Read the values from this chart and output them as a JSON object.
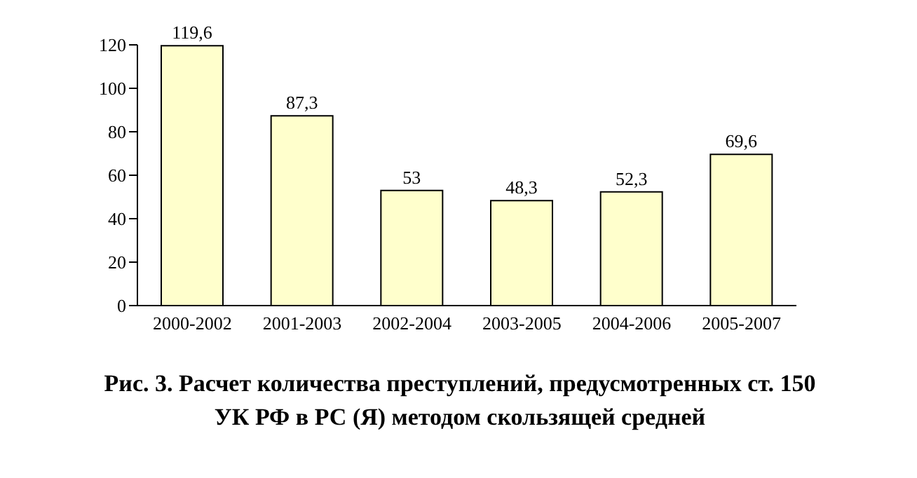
{
  "chart_data": {
    "type": "bar",
    "title": "Рис. 3. Расчет количества преступлений, предусмотренных ст. 150 УК РФ в РС (Я) методом скользящей средней",
    "categories": [
      "2000-2002",
      "2001-2003",
      "2002-2004",
      "2003-2005",
      "2004-2006",
      "2005-2007"
    ],
    "values": [
      119.6,
      87.3,
      53,
      48.3,
      52.3,
      69.6
    ],
    "value_labels": [
      "119,6",
      "87,3",
      "53",
      "48,3",
      "52,3",
      "69,6"
    ],
    "color": "#ffffcc",
    "ylim": [
      0,
      120
    ],
    "yticks": [
      0,
      20,
      40,
      60,
      80,
      100,
      120
    ],
    "grid": false,
    "legend": false
  }
}
